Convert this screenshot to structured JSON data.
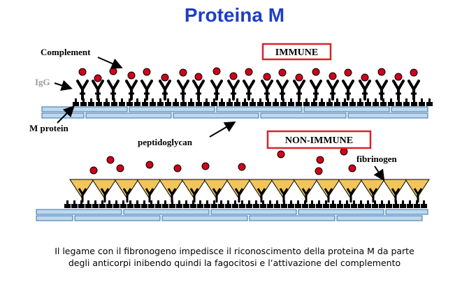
{
  "title": "Proteina M",
  "labels": {
    "complement": "Complement",
    "igg": "IgG",
    "m_protein": "M protein",
    "peptidoglycan": "peptidoglycan",
    "fibrinogen": "fibrinogen",
    "immune": "IMMUNE",
    "non_immune": "NON-IMMUNE"
  },
  "caption": {
    "line1": "Il legame con il fibronogeno impedisce il riconoscimento della proteina M da parte",
    "line2": "degli anticorpi inibendo quindi la fagocitosi e l’attivazione del complemento"
  },
  "colors": {
    "title": "#1f3ec7",
    "box_border": "#d8232a",
    "complement": "#d0021b",
    "fibrinogen": "#f2c55a",
    "membrane": "#bcd9ee",
    "membrane_border": "#3a6fa8"
  }
}
